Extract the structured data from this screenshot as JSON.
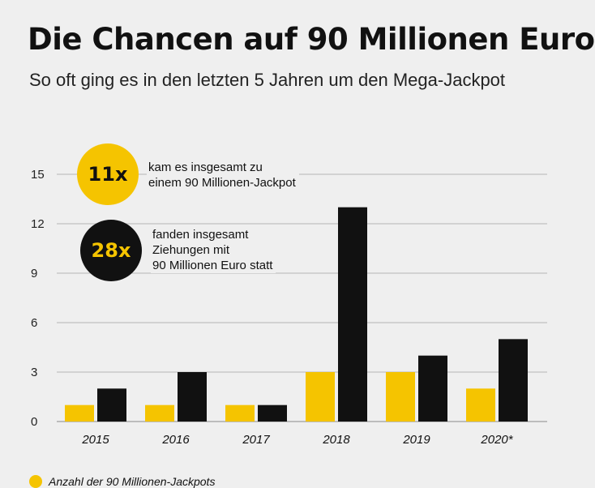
{
  "header": {
    "title": "Die Chancen auf 90 Millionen Euro",
    "subtitle": "So oft ging es in den letzten 5 Jahren um den Mega-Jackpot"
  },
  "callouts": [
    {
      "badge": "11x",
      "text": "kam es insgesamt zu\neinem 90 Millionen-Jackpot",
      "color": "#f5c400"
    },
    {
      "badge": "28x",
      "text": "fanden insgesamt\nZiehungen mit\n90 Millionen Euro statt",
      "color": "#111111"
    }
  ],
  "legend": [
    {
      "label": "Anzahl der 90 Millionen-Jackpots",
      "color": "#f5c400"
    }
  ],
  "colors": {
    "yellow": "#f5c400",
    "black": "#111111",
    "grid": "#b5b5b5",
    "background": "#efefef"
  },
  "chart_data": {
    "type": "bar",
    "title": "Die Chancen auf 90 Millionen Euro",
    "subtitle": "So oft ging es in den letzten 5 Jahren um den Mega-Jackpot",
    "categories": [
      "2015",
      "2016",
      "2017",
      "2018",
      "2019",
      "2020*"
    ],
    "series": [
      {
        "name": "Anzahl der 90 Millionen-Jackpots",
        "color": "#f5c400",
        "values": [
          1,
          1,
          1,
          3,
          3,
          2
        ]
      },
      {
        "color": "#111111",
        "values": [
          2,
          3,
          1,
          13,
          4,
          5
        ]
      }
    ],
    "yticks": [
      0,
      3,
      6,
      9,
      12,
      15
    ],
    "ylim": [
      0,
      15
    ],
    "grid": true,
    "legend_position": "bottom-left"
  }
}
